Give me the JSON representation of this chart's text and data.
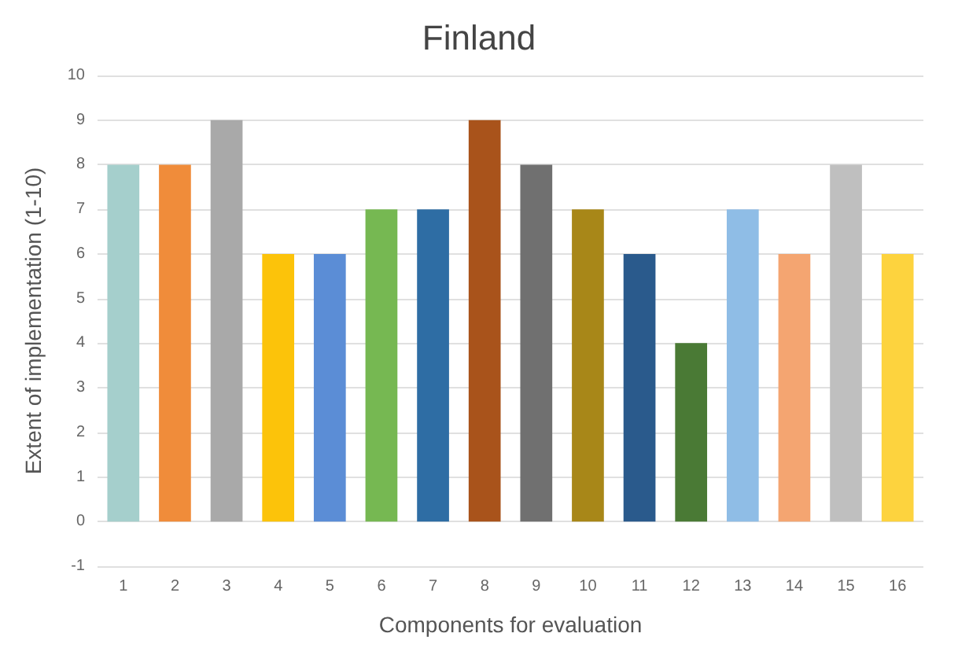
{
  "chart_data": {
    "type": "bar",
    "title": "Finland",
    "xlabel": "Components for evaluation",
    "ylabel": "Extent of implementation (1-10)",
    "categories": [
      "1",
      "2",
      "3",
      "4",
      "5",
      "6",
      "7",
      "8",
      "9",
      "10",
      "11",
      "12",
      "13",
      "14",
      "15",
      "16"
    ],
    "values": [
      8,
      8,
      9,
      6,
      6,
      7,
      7,
      9,
      8,
      7,
      6,
      4,
      7,
      6,
      8,
      6
    ],
    "colors": [
      "#a5cfcc",
      "#f08c3a",
      "#a9a9a9",
      "#fcc30a",
      "#5b8dd6",
      "#76b852",
      "#2e6da4",
      "#a9531b",
      "#707070",
      "#a88718",
      "#2a5a8c",
      "#4a7a35",
      "#8fbde6",
      "#f4a571",
      "#bfbfbf",
      "#fdd33e"
    ],
    "ylim": [
      -1,
      10
    ],
    "yticks": [
      -1,
      0,
      1,
      2,
      3,
      4,
      5,
      6,
      7,
      8,
      9,
      10
    ],
    "grid": "y"
  }
}
